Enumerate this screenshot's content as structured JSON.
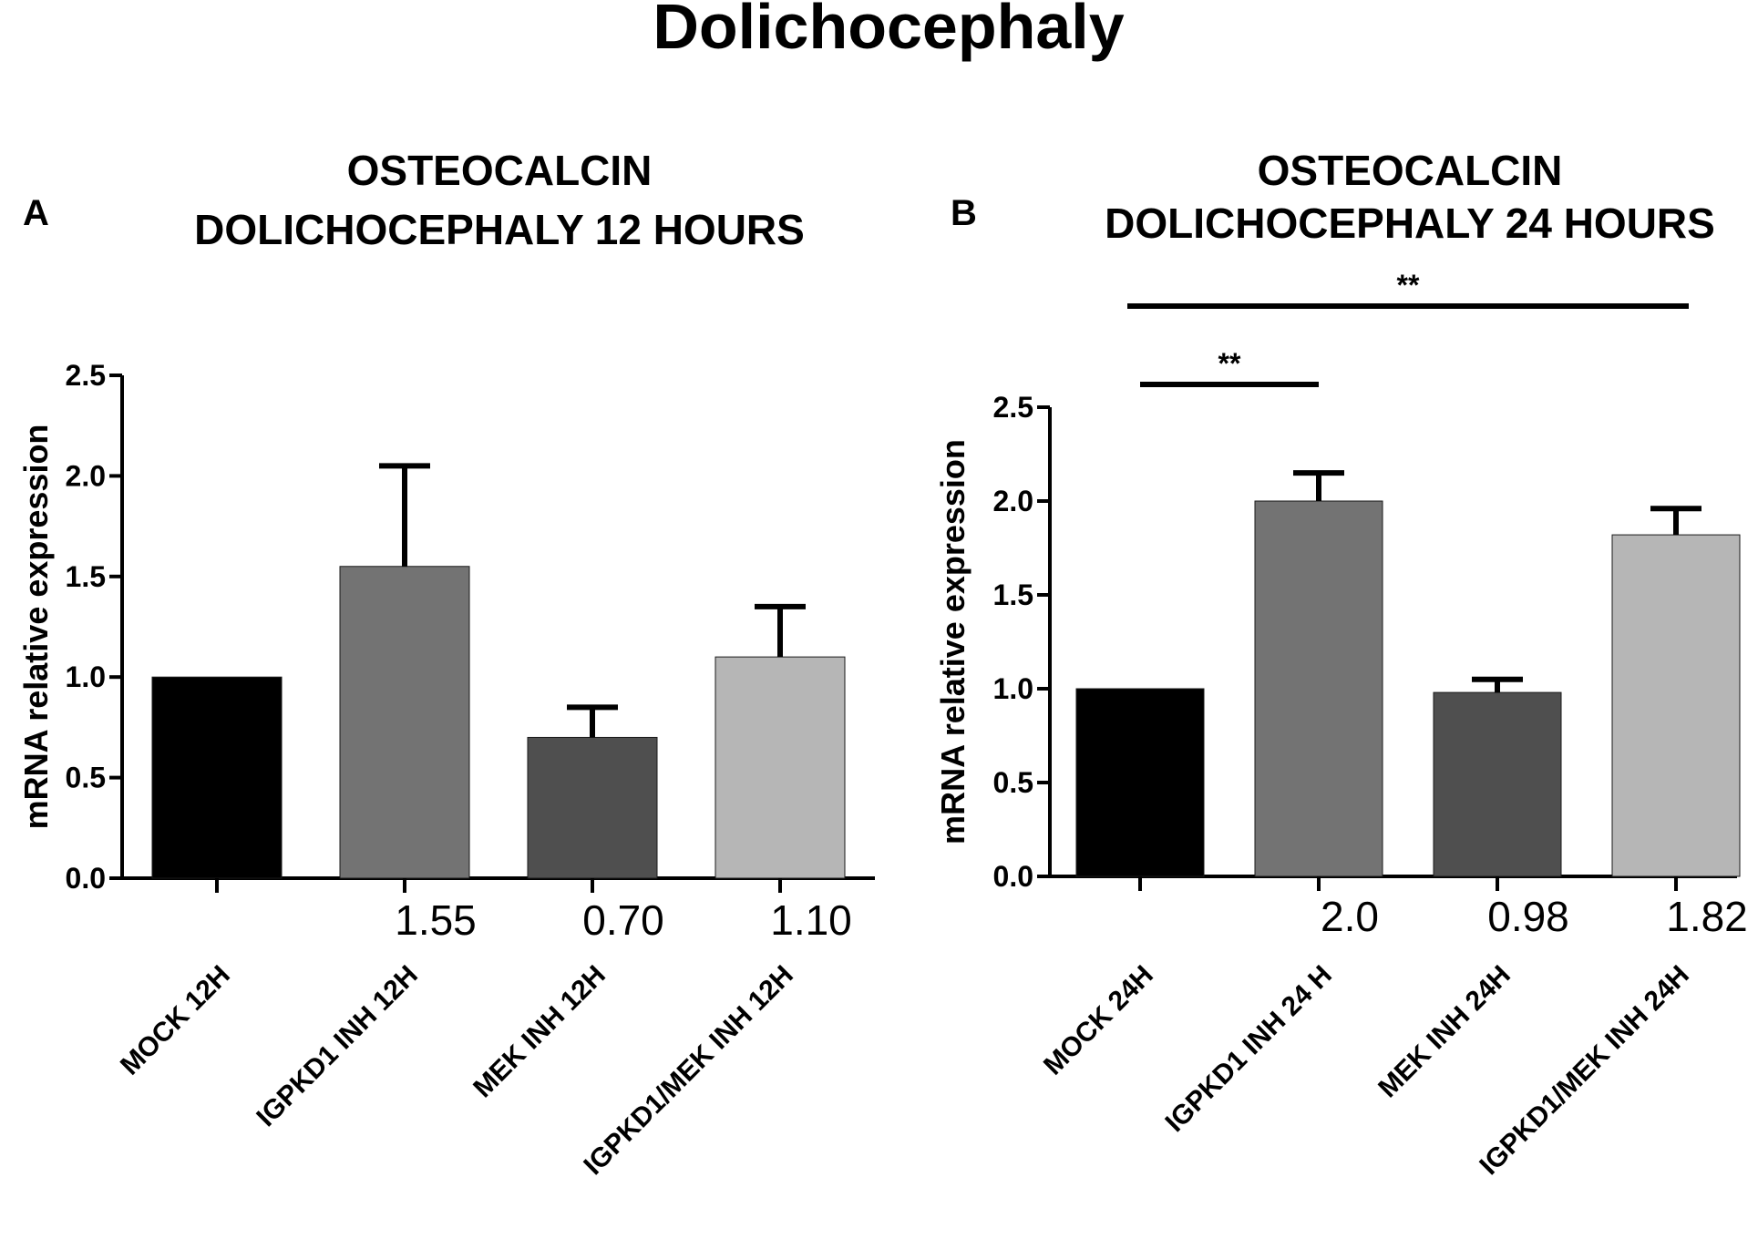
{
  "title": "Dolichocephaly",
  "chart_data": [
    {
      "type": "bar",
      "panel": "A",
      "title": [
        "OSTEOCALCIN",
        "DOLICHOCEPHALY 12 HOURS"
      ],
      "ylabel": "mRNA relative expression",
      "xlabel": "",
      "ylim": [
        0,
        2.5
      ],
      "yticks": [
        "0.0",
        "0.5",
        "1.0",
        "1.5",
        "2.0",
        "2.5"
      ],
      "categories": [
        "MOCK 12H",
        "IGPKD1 INH 12H",
        "MEK INH 12H",
        "IGPKD1/MEK INH 12H"
      ],
      "values": [
        1.0,
        1.55,
        0.7,
        1.1
      ],
      "errors": [
        0,
        0.5,
        0.15,
        0.25
      ],
      "data_labels": [
        "",
        "1.55",
        "0.70",
        "1.10"
      ],
      "colors": [
        "#000000",
        "#737373",
        "#4f4f4f",
        "#b6b6b6"
      ],
      "significance": []
    },
    {
      "type": "bar",
      "panel": "B",
      "title": [
        "OSTEOCALCIN",
        "DOLICHOCEPHALY 24 HOURS"
      ],
      "ylabel": "mRNA relative expression",
      "xlabel": "",
      "ylim": [
        0,
        2.5
      ],
      "yticks": [
        "0.0",
        "0.5",
        "1.0",
        "1.5",
        "2.0",
        "2.5"
      ],
      "categories": [
        "MOCK 24H",
        "IGPKD1 INH 24 H",
        "MEK INH 24H",
        "IGPKD1/MEK INH 24H"
      ],
      "values": [
        1.0,
        2.0,
        0.98,
        1.82
      ],
      "errors": [
        0,
        0.15,
        0.07,
        0.14
      ],
      "data_labels": [
        "",
        "2.0",
        "0.98",
        "1.82"
      ],
      "colors": [
        "#000000",
        "#737373",
        "#4f4f4f",
        "#b6b6b6"
      ],
      "significance": [
        {
          "from": 0,
          "to": 1,
          "label": "**"
        },
        {
          "from": 0,
          "to": 3,
          "label": "**"
        }
      ]
    }
  ]
}
